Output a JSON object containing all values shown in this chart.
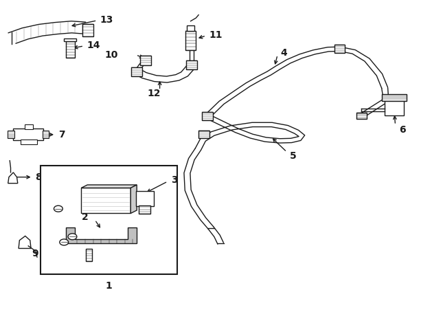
{
  "bg_color": "#ffffff",
  "line_color": "#1a1a1a",
  "lw": 1.0,
  "fig_w": 6.45,
  "fig_h": 4.54,
  "dpi": 100
}
